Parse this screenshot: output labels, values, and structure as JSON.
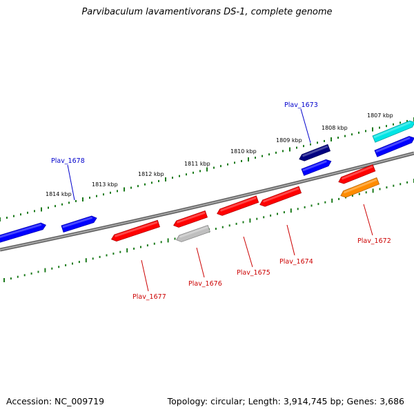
{
  "title": "Parvibaculum lavamentivorans DS-1, complete genome",
  "footer": {
    "accession": "Accession: NC_009719",
    "summary": "Topology: circular; Length: 3,914,745 bp; Genes: 3,686"
  },
  "colors": {
    "backbone": "#808080",
    "tick": "#1a7a1a",
    "blue": "#0000ff",
    "navy": "#000080",
    "cyan": "#00e5e5",
    "red": "#ff0000",
    "gray": "#bfbfbf",
    "orange": "#ff8c00",
    "label_blue": "#0000cc",
    "label_red": "#cc0000"
  },
  "scale_labels": [
    "1814 kbp",
    "1813 kbp",
    "1812 kbp",
    "1811 kbp",
    "1810 kbp",
    "1809 kbp",
    "1808 kbp",
    "1807 kbp"
  ],
  "gene_labels": [
    "Plav_1678",
    "Plav_1673",
    "Plav_1677",
    "Plav_1676",
    "Plav_1675",
    "Plav_1674",
    "Plav_1672"
  ]
}
